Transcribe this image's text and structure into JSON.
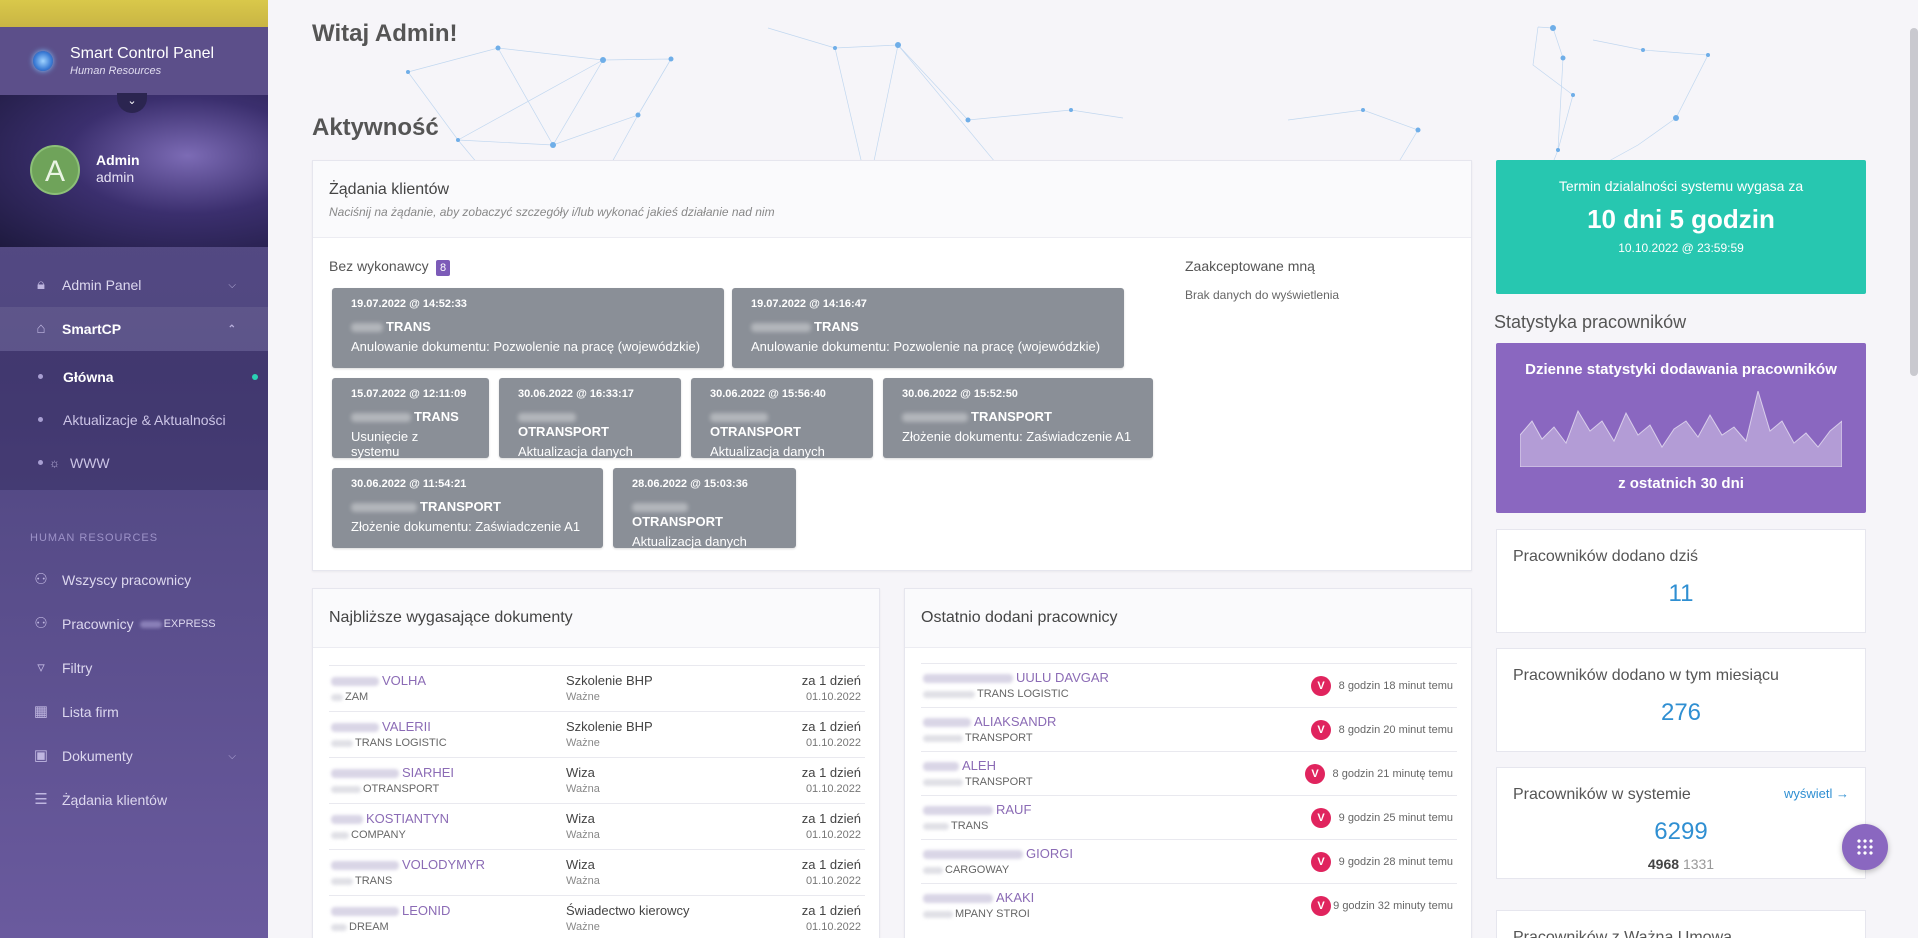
{
  "sidebar": {
    "brand_title": "Smart Control Panel",
    "brand_sub": "Human Resources",
    "user": {
      "initial": "A",
      "name": "Admin",
      "role": "admin"
    },
    "menu": [
      {
        "label": "Admin Panel",
        "icon": "lock-icon"
      },
      {
        "label": "SmartCP",
        "icon": "home-icon"
      }
    ],
    "submenu": [
      "Główna",
      "Aktualizacje & Aktualności",
      "WWW"
    ],
    "section_label": "HUMAN RESOURCES",
    "hr_menu": [
      "Wszyscy pracownicy",
      "Pracownicy",
      "Filtry",
      "Lista firm",
      "Dokumenty",
      "Żądania klientów"
    ],
    "hr_suffix": "EXPRESS"
  },
  "header": {
    "greeting": "Witaj Admin!",
    "activity": "Aktywność"
  },
  "requests": {
    "title": "Żądania klientów",
    "subtitle": "Naciśnij na żądanie, aby zobaczyć szczegóły i/lub wykonać jakieś działanie nad nim",
    "unassigned_label": "Bez wykonawcy",
    "unassigned_count": "8",
    "accepted_label": "Zaakceptowane mną",
    "accepted_empty": "Brak danych do wyświetlenia",
    "tiles": [
      {
        "date": "19.07.2022 @ 14:52:33",
        "company": "TRANS",
        "action": "Anulowanie dokumentu: Pozwolenie na pracę (wojewódzkie)"
      },
      {
        "date": "19.07.2022 @ 14:16:47",
        "company": "TRANS",
        "action": "Anulowanie dokumentu: Pozwolenie na pracę (wojewódzkie)"
      },
      {
        "date": "15.07.2022 @ 12:11:09",
        "company": "TRANS",
        "action": "Usunięcie z systemu"
      },
      {
        "date": "30.06.2022 @ 16:33:17",
        "company": "OTRANSPORT",
        "action": "Aktualizacja danych"
      },
      {
        "date": "30.06.2022 @ 15:56:40",
        "company": "OTRANSPORT",
        "action": "Aktualizacja danych"
      },
      {
        "date": "30.06.2022 @ 15:52:50",
        "company": "TRANSPORT",
        "action": "Złożenie dokumentu: Zaświadczenie A1"
      },
      {
        "date": "30.06.2022 @ 11:54:21",
        "company": "TRANSPORT",
        "action": "Złożenie dokumentu: Zaświadczenie A1"
      },
      {
        "date": "28.06.2022 @ 15:03:36",
        "company": "OTRANSPORT",
        "action": "Aktualizacja danych"
      }
    ]
  },
  "docs": {
    "title": "Najbliższe wygasające dokumenty",
    "rows": [
      {
        "name": "VOLHA",
        "company": "ZAM",
        "doc": "Szkolenie BHP",
        "status": "Ważne",
        "due": "za 1 dzień",
        "date": "01.10.2022"
      },
      {
        "name": "VALERII",
        "company": "TRANS LOGISTIC",
        "doc": "Szkolenie BHP",
        "status": "Ważne",
        "due": "za 1 dzień",
        "date": "01.10.2022"
      },
      {
        "name": "SIARHEI",
        "company": "OTRANSPORT",
        "doc": "Wiza",
        "status": "Ważna",
        "due": "za 1 dzień",
        "date": "01.10.2022"
      },
      {
        "name": "KOSTIANTYN",
        "company": "COMPANY",
        "doc": "Wiza",
        "status": "Ważna",
        "due": "za 1 dzień",
        "date": "01.10.2022"
      },
      {
        "name": "VOLODYMYR",
        "company": "TRANS",
        "doc": "Wiza",
        "status": "Ważna",
        "due": "za 1 dzień",
        "date": "01.10.2022"
      },
      {
        "name": "LEONID",
        "company": "DREAM",
        "doc": "Świadectwo kierowcy",
        "status": "Ważne",
        "due": "za 1 dzień",
        "date": "01.10.2022"
      }
    ]
  },
  "recent": {
    "title": "Ostatnio dodani pracownicy",
    "badge": "V",
    "rows": [
      {
        "name": "UULU DAVGAR",
        "company": "TRANS LOGISTIC",
        "time": "8 godzin 18 minut temu"
      },
      {
        "name": "ALIAKSANDR",
        "company": "TRANSPORT",
        "time": "8 godzin 20 minut temu"
      },
      {
        "name": "ALEH",
        "company": "TRANSPORT",
        "time": "8 godzin 21 minutę temu"
      },
      {
        "name": "RAUF",
        "company": "TRANS",
        "time": "9 godzin 25 minut temu"
      },
      {
        "name": "GIORGI",
        "company": "CARGOWAY",
        "time": "9 godzin 28 minut temu"
      },
      {
        "name": "AKAKI",
        "company": "MPANY STROI",
        "time": "9 godzin 32 minuty temu"
      }
    ]
  },
  "expire": {
    "label": "Termin dzialalności systemu wygasa za",
    "value": "10 dni 5 godzin",
    "date": "10.10.2022 @ 23:59:59"
  },
  "stats": {
    "title": "Statystyka pracowników",
    "daily_title": "Dzienne statystyki dodawania pracowników",
    "daily_bottom": "z ostatnich 30 dni",
    "today_label": "Pracowników dodano dziś",
    "today_value": "11",
    "month_label": "Pracowników dodano w tym miesiącu",
    "month_value": "276",
    "system_label": "Pracowników w systemie",
    "system_value": "6299",
    "system_link": "wyświetl",
    "system_a": "4968",
    "system_b": "1331",
    "next_label": "Pracowników z Ważną Umową"
  },
  "colors": {
    "accent": "#8a67c0",
    "teal": "#27c7b0",
    "badge": "#e0245e",
    "link": "#2f8fd2"
  }
}
